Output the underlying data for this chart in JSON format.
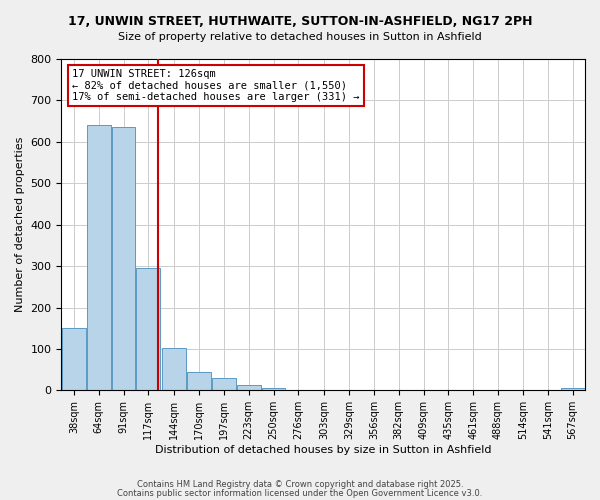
{
  "title1": "17, UNWIN STREET, HUTHWAITE, SUTTON-IN-ASHFIELD, NG17 2PH",
  "title2": "Size of property relative to detached houses in Sutton in Ashfield",
  "xlabel": "Distribution of detached houses by size in Sutton in Ashfield",
  "ylabel": "Number of detached properties",
  "bar_values": [
    150,
    640,
    635,
    295,
    102,
    45,
    30,
    12,
    5,
    0,
    0,
    0,
    0,
    0,
    0,
    0,
    0,
    0,
    0,
    0,
    5
  ],
  "bar_labels": [
    "38sqm",
    "64sqm",
    "91sqm",
    "117sqm",
    "144sqm",
    "170sqm",
    "197sqm",
    "223sqm",
    "250sqm",
    "276sqm",
    "303sqm",
    "329sqm",
    "356sqm",
    "382sqm",
    "409sqm",
    "435sqm",
    "461sqm",
    "488sqm",
    "514sqm",
    "541sqm",
    "567sqm"
  ],
  "bin_edges": [
    25,
    51,
    77,
    103,
    130,
    156,
    182,
    208,
    234,
    260,
    287,
    313,
    339,
    365,
    391,
    417,
    443,
    469,
    495,
    521,
    547,
    573
  ],
  "bar_color": "#b8d4e8",
  "bar_edge_color": "#5a9ac5",
  "vline_x": 126,
  "vline_color": "#cc0000",
  "ylim": [
    0,
    800
  ],
  "yticks": [
    0,
    100,
    200,
    300,
    400,
    500,
    600,
    700,
    800
  ],
  "annotation_title": "17 UNWIN STREET: 126sqm",
  "annotation_line1": "← 82% of detached houses are smaller (1,550)",
  "annotation_line2": "17% of semi-detached houses are larger (331) →",
  "annotation_box_color": "#ffffff",
  "annotation_box_edge_color": "#cc0000",
  "footer1": "Contains HM Land Registry data © Crown copyright and database right 2025.",
  "footer2": "Contains public sector information licensed under the Open Government Licence v3.0.",
  "background_color": "#efefef",
  "plot_background_color": "#ffffff",
  "grid_color": "#cccccc"
}
